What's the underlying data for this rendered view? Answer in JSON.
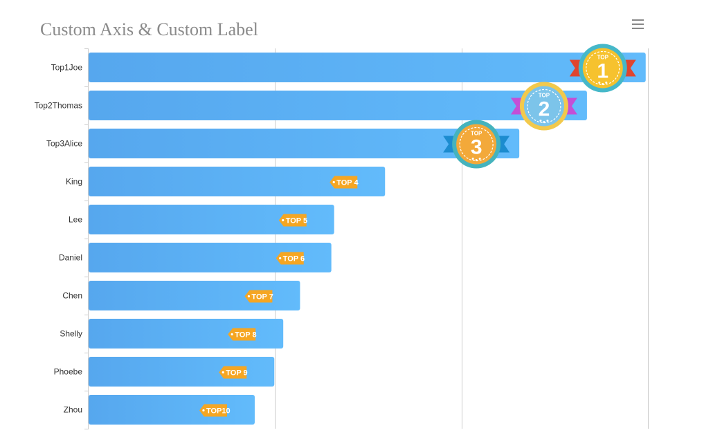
{
  "title": "Custom Axis & Custom Label",
  "toolbar": {
    "menu_icon": "hamburger-menu-icon"
  },
  "colors": {
    "bar_start": "#56a7ee",
    "bar_end": "#62bbfb",
    "axis": "#cccccc",
    "label_text": "#333333",
    "tag": "#f5a623"
  },
  "chart_data": {
    "type": "bar",
    "orientation": "horizontal",
    "categories": [
      "Top1Joe",
      "Top2Thomas",
      "Top3Alice",
      "King",
      "Lee",
      "Daniel",
      "Chen",
      "Shelly",
      "Phoebe",
      "Zhou"
    ],
    "values": [
      99.6,
      89.1,
      77.0,
      53.0,
      43.9,
      43.4,
      37.8,
      34.8,
      33.2,
      29.7
    ],
    "rank_labels": [
      "1",
      "2",
      "3",
      "TOP 4",
      "TOP 5",
      "TOP 6",
      "TOP 7",
      "TOP 8",
      "TOP 9",
      "TOP10"
    ],
    "medal_top_text": "TOP",
    "xlim": [
      0,
      100
    ],
    "gridlines": [
      33.3,
      66.7,
      100
    ],
    "grid": true,
    "xlabel": "",
    "ylabel": ""
  }
}
